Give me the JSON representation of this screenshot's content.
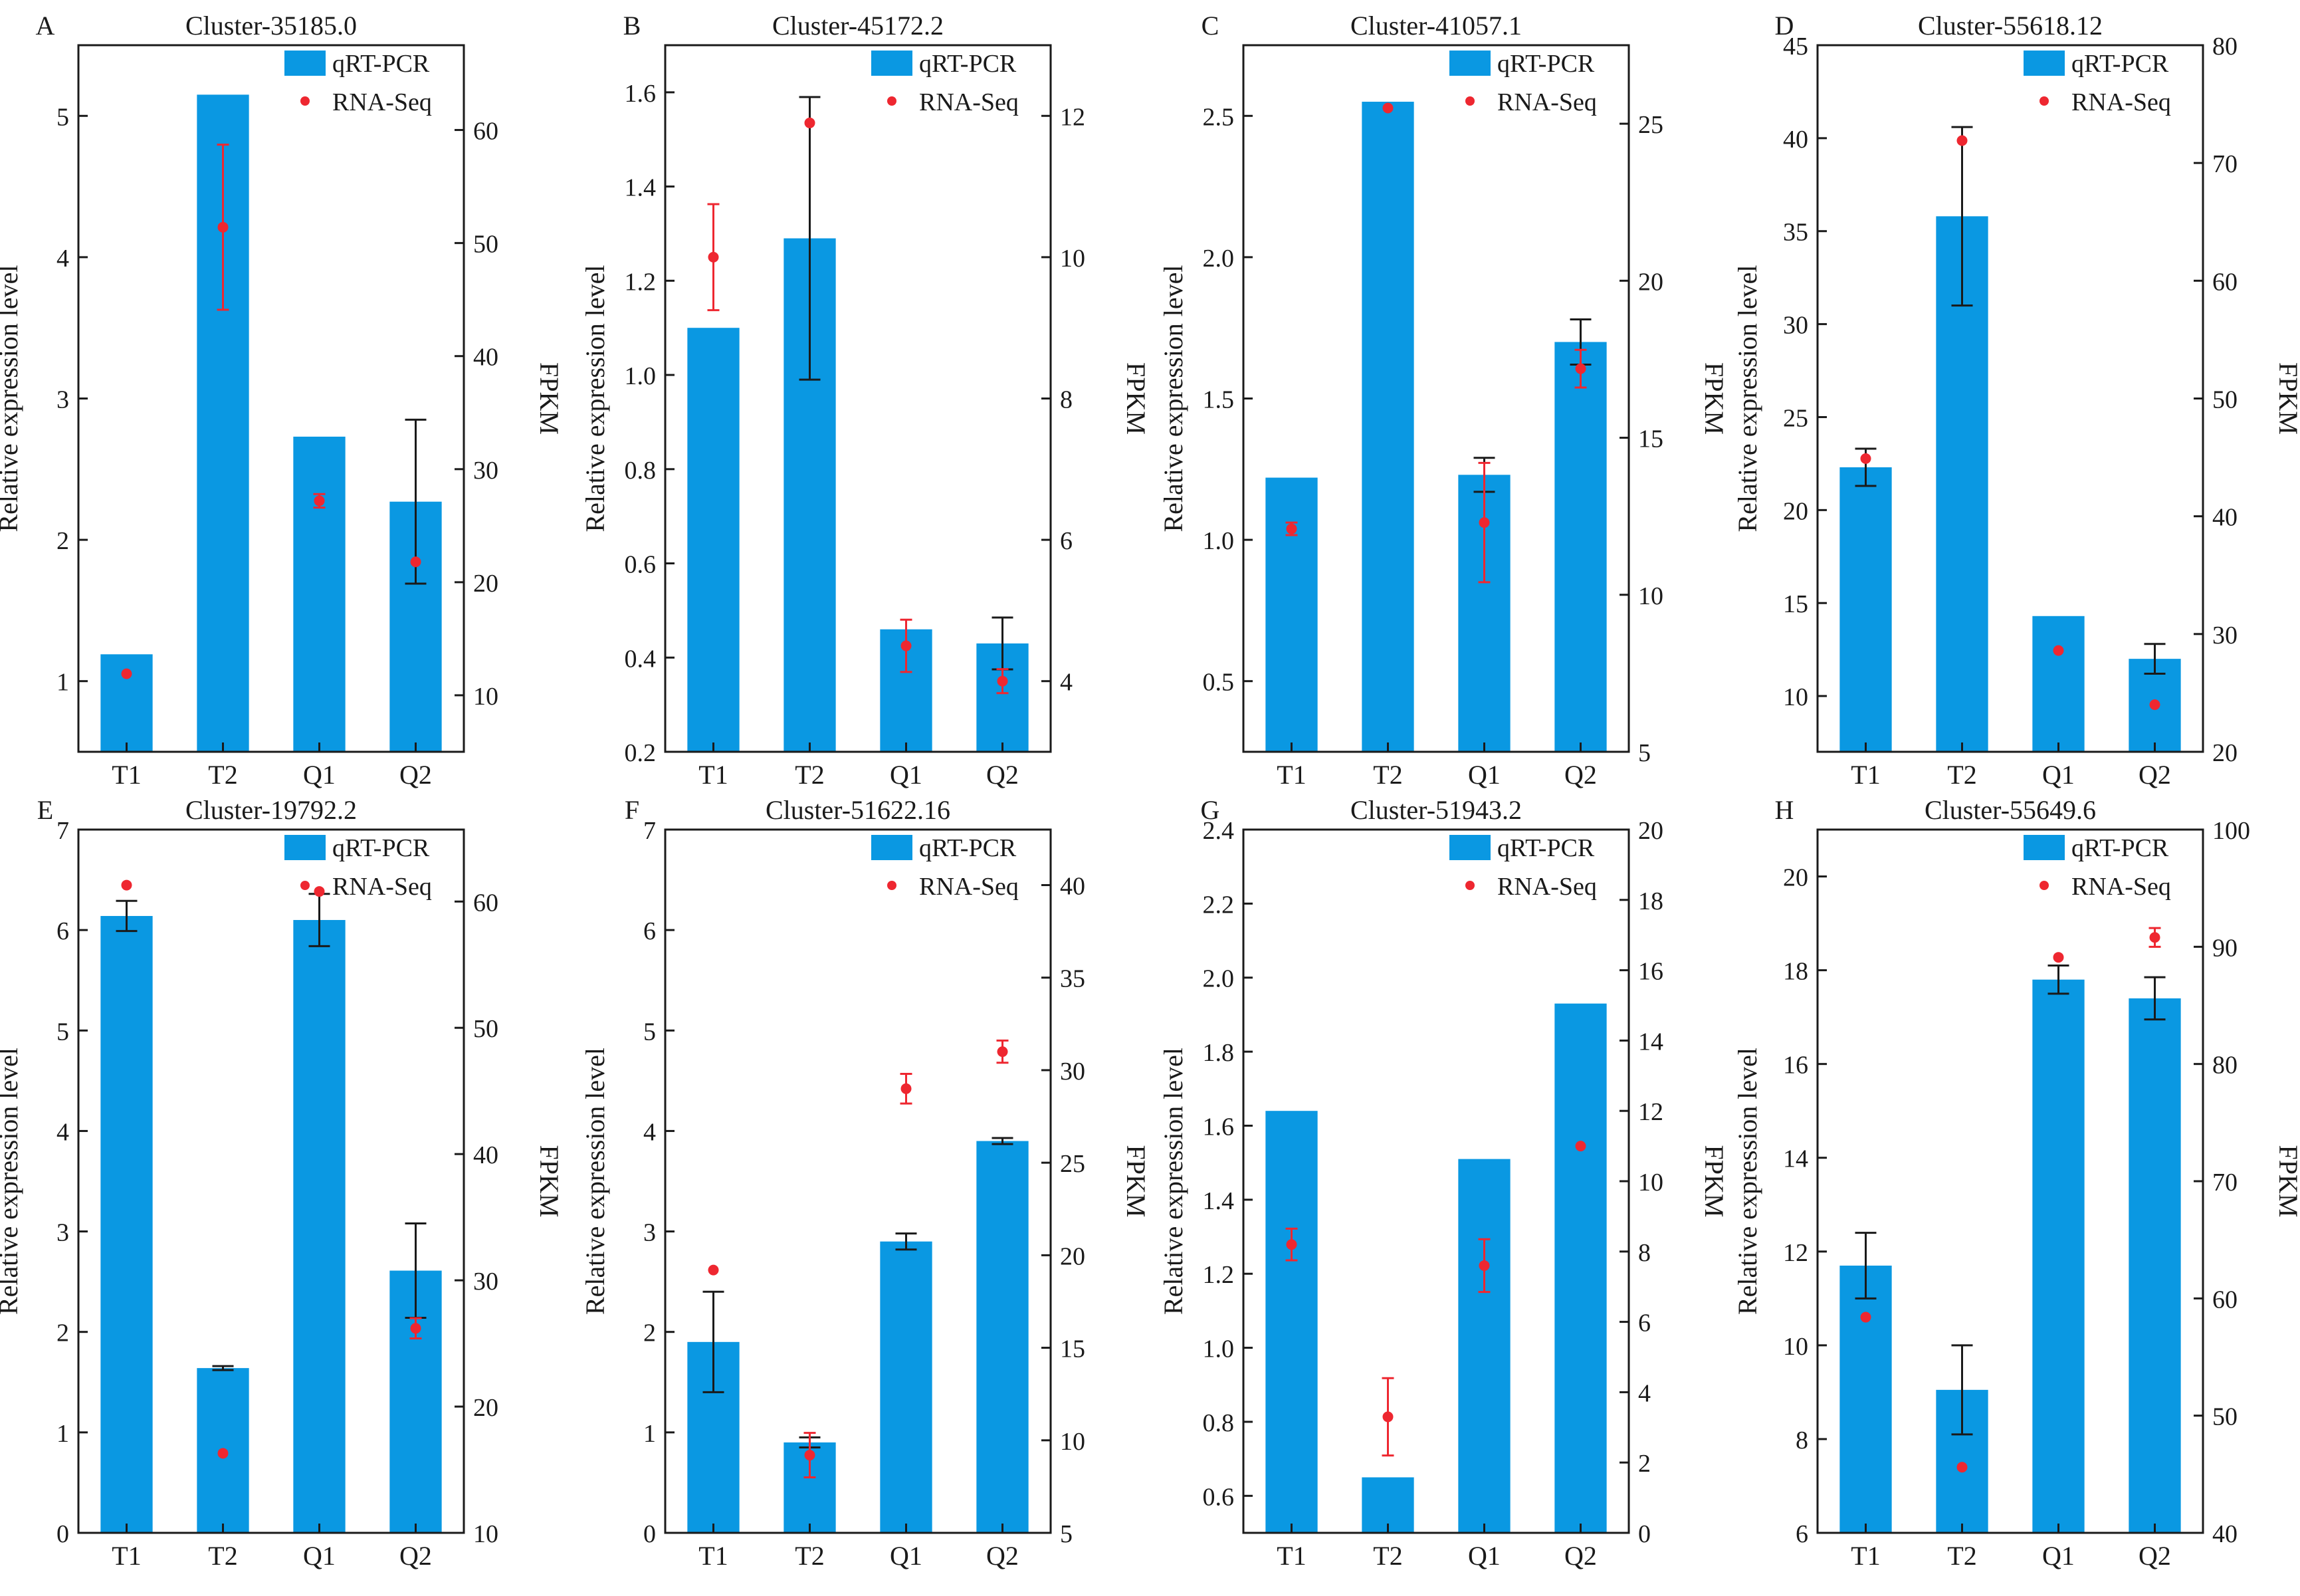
{
  "colors": {
    "bar": "#0a98e2",
    "point": "#ee2730",
    "bar_error": "#1a1a1a",
    "point_error": "#ee2730",
    "axis": "#1a1a1a"
  },
  "chart_data": [
    {
      "type": "bar+scatter",
      "panel_letter": "A",
      "title": "Cluster-35185.0",
      "categories": [
        "T1",
        "T2",
        "Q1",
        "Q2"
      ],
      "ylabel": "Relative expression level",
      "y2label": "FPKM",
      "ylim": [
        0.5,
        5.5
      ],
      "yticks": [
        1,
        2,
        3,
        4,
        5
      ],
      "y2lim": [
        5,
        67.5
      ],
      "y2ticks": [
        10,
        20,
        30,
        40,
        50,
        60
      ],
      "legend": {
        "bar": "qRT-PCR",
        "point": "RNA-Seq",
        "position": "top-right"
      },
      "series": [
        {
          "name": "qRT-PCR",
          "axis": "left",
          "kind": "bar",
          "values": [
            1.19,
            5.15,
            2.73,
            2.27
          ],
          "errors": [
            0,
            0,
            0,
            0.58
          ]
        },
        {
          "name": "RNA-Seq",
          "axis": "right",
          "kind": "point",
          "values": [
            11.9,
            51.4,
            27.2,
            21.8
          ],
          "errors": [
            0,
            7.3,
            0.6,
            0
          ]
        }
      ]
    },
    {
      "type": "bar+scatter",
      "panel_letter": "B",
      "title": "Cluster-45172.2",
      "categories": [
        "T1",
        "T2",
        "Q1",
        "Q2"
      ],
      "ylabel": "Relative expression level",
      "y2label": "FPKM",
      "ylim": [
        0.2,
        1.7
      ],
      "yticks": [
        0.2,
        0.4,
        0.6,
        0.8,
        1.0,
        1.2,
        1.4,
        1.6
      ],
      "y2lim": [
        3,
        13
      ],
      "y2ticks": [
        4,
        6,
        8,
        10,
        12
      ],
      "legend": {
        "bar": "qRT-PCR",
        "point": "RNA-Seq",
        "position": "top-right"
      },
      "series": [
        {
          "name": "qRT-PCR",
          "axis": "left",
          "kind": "bar",
          "values": [
            1.1,
            1.29,
            0.46,
            0.43
          ],
          "errors": [
            0,
            0.3,
            0,
            0.055
          ]
        },
        {
          "name": "RNA-Seq",
          "axis": "right",
          "kind": "point",
          "values": [
            10.0,
            11.9,
            4.5,
            4.0
          ],
          "errors": [
            0.75,
            0,
            0.37,
            0.17
          ]
        }
      ]
    },
    {
      "type": "bar+scatter",
      "panel_letter": "C",
      "title": "Cluster-41057.1",
      "categories": [
        "T1",
        "T2",
        "Q1",
        "Q2"
      ],
      "ylabel": "Relative expression level",
      "y2label": "FPKM",
      "ylim": [
        0.25,
        2.75
      ],
      "yticks": [
        0.5,
        1.0,
        1.5,
        2.0,
        2.5
      ],
      "y2lim": [
        5,
        27.5
      ],
      "y2ticks": [
        5,
        10,
        15,
        20,
        25
      ],
      "legend": {
        "bar": "qRT-PCR",
        "point": "RNA-Seq",
        "position": "top-right"
      },
      "series": [
        {
          "name": "qRT-PCR",
          "axis": "left",
          "kind": "bar",
          "values": [
            1.22,
            2.55,
            1.23,
            1.7
          ],
          "errors": [
            0,
            0,
            0.06,
            0.08
          ]
        },
        {
          "name": "RNA-Seq",
          "axis": "right",
          "kind": "point",
          "values": [
            12.1,
            25.5,
            12.3,
            17.2
          ],
          "errors": [
            0.2,
            0,
            1.9,
            0.6
          ]
        }
      ]
    },
    {
      "type": "bar+scatter",
      "panel_letter": "D",
      "title": "Cluster-55618.12",
      "categories": [
        "T1",
        "T2",
        "Q1",
        "Q2"
      ],
      "ylabel": "Relative expression level",
      "y2label": "FPKM",
      "ylim": [
        7,
        45
      ],
      "yticks": [
        10,
        15,
        20,
        25,
        30,
        35,
        40,
        45
      ],
      "y2lim": [
        20,
        80
      ],
      "y2ticks": [
        20,
        30,
        40,
        50,
        60,
        70,
        80
      ],
      "legend": {
        "bar": "qRT-PCR",
        "point": "RNA-Seq",
        "position": "top-right"
      },
      "series": [
        {
          "name": "qRT-PCR",
          "axis": "left",
          "kind": "bar",
          "values": [
            22.3,
            35.8,
            14.3,
            12.0
          ],
          "errors": [
            1.0,
            4.8,
            0,
            0.8
          ]
        },
        {
          "name": "RNA-Seq",
          "axis": "right",
          "kind": "point",
          "values": [
            44.9,
            71.9,
            28.6,
            24.0
          ],
          "errors": [
            0,
            0,
            0,
            0
          ]
        }
      ]
    },
    {
      "type": "bar+scatter",
      "panel_letter": "E",
      "title": "Cluster-19792.2",
      "categories": [
        "T1",
        "T2",
        "Q1",
        "Q2"
      ],
      "ylabel": "Relative expression level",
      "y2label": "FPKM",
      "ylim": [
        0,
        7
      ],
      "yticks": [
        0,
        1,
        2,
        3,
        4,
        5,
        6,
        7
      ],
      "y2lim": [
        10,
        65.7
      ],
      "y2ticks": [
        10,
        20,
        30,
        40,
        50,
        60
      ],
      "legend": {
        "bar": "qRT-PCR",
        "point": "RNA-Seq",
        "position": "top-right"
      },
      "series": [
        {
          "name": "qRT-PCR",
          "axis": "left",
          "kind": "bar",
          "values": [
            6.14,
            1.64,
            6.1,
            2.61
          ],
          "errors": [
            0.15,
            0.02,
            0.26,
            0.47
          ]
        },
        {
          "name": "RNA-Seq",
          "axis": "right",
          "kind": "point",
          "values": [
            61.3,
            16.3,
            60.8,
            26.2
          ],
          "errors": [
            0,
            0,
            0,
            0.8
          ]
        }
      ]
    },
    {
      "type": "bar+scatter",
      "panel_letter": "F",
      "title": "Cluster-51622.16",
      "categories": [
        "T1",
        "T2",
        "Q1",
        "Q2"
      ],
      "ylabel": "Relative expression level",
      "y2label": "FPKM",
      "ylim": [
        0,
        7
      ],
      "yticks": [
        0,
        1,
        2,
        3,
        4,
        5,
        6,
        7
      ],
      "y2lim": [
        5,
        43
      ],
      "y2ticks": [
        5,
        10,
        15,
        20,
        25,
        30,
        35,
        40
      ],
      "legend": {
        "bar": "qRT-PCR",
        "point": "RNA-Seq",
        "position": "top-right"
      },
      "series": [
        {
          "name": "qRT-PCR",
          "axis": "left",
          "kind": "bar",
          "values": [
            1.9,
            0.9,
            2.9,
            3.9
          ],
          "errors": [
            0.5,
            0.05,
            0.08,
            0.03
          ]
        },
        {
          "name": "RNA-Seq",
          "axis": "right",
          "kind": "point",
          "values": [
            19.2,
            9.2,
            29.0,
            31.0
          ],
          "errors": [
            0,
            1.2,
            0.8,
            0.6
          ]
        }
      ]
    },
    {
      "type": "bar+scatter",
      "panel_letter": "G",
      "title": "Cluster-51943.2",
      "categories": [
        "T1",
        "T2",
        "Q1",
        "Q2"
      ],
      "ylabel": "Relative expression level",
      "y2label": "FPKM",
      "ylim": [
        0.5,
        2.4
      ],
      "yticks": [
        0.6,
        0.8,
        1.0,
        1.2,
        1.4,
        1.6,
        1.8,
        2.0,
        2.2,
        2.4
      ],
      "y2lim": [
        0,
        20
      ],
      "y2ticks": [
        0,
        2,
        4,
        6,
        8,
        10,
        12,
        14,
        16,
        18,
        20
      ],
      "legend": {
        "bar": "qRT-PCR",
        "point": "RNA-Seq",
        "position": "top-right"
      },
      "series": [
        {
          "name": "qRT-PCR",
          "axis": "left",
          "kind": "bar",
          "values": [
            1.64,
            0.65,
            1.51,
            1.93
          ],
          "errors": [
            0,
            0,
            0,
            0
          ]
        },
        {
          "name": "RNA-Seq",
          "axis": "right",
          "kind": "point",
          "values": [
            8.2,
            3.3,
            7.6,
            11.0
          ],
          "errors": [
            0.45,
            1.1,
            0.75,
            0
          ]
        }
      ]
    },
    {
      "type": "bar+scatter",
      "panel_letter": "H",
      "title": "Cluster-55649.6",
      "categories": [
        "T1",
        "T2",
        "Q1",
        "Q2"
      ],
      "ylabel": "Relative expression level",
      "y2label": "FPKM",
      "ylim": [
        6,
        21
      ],
      "yticks": [
        6,
        8,
        10,
        12,
        14,
        16,
        18,
        20
      ],
      "y2lim": [
        40,
        100
      ],
      "y2ticks": [
        40,
        50,
        60,
        70,
        80,
        90,
        100
      ],
      "legend": {
        "bar": "qRT-PCR",
        "point": "RNA-Seq",
        "position": "top-right"
      },
      "series": [
        {
          "name": "qRT-PCR",
          "axis": "left",
          "kind": "bar",
          "values": [
            11.7,
            9.05,
            17.8,
            17.4
          ],
          "errors": [
            0.7,
            0.95,
            0.3,
            0.45
          ]
        },
        {
          "name": "RNA-Seq",
          "axis": "right",
          "kind": "point",
          "values": [
            58.4,
            45.6,
            89.1,
            90.8
          ],
          "errors": [
            0,
            0,
            0,
            0.8
          ]
        }
      ]
    }
  ]
}
